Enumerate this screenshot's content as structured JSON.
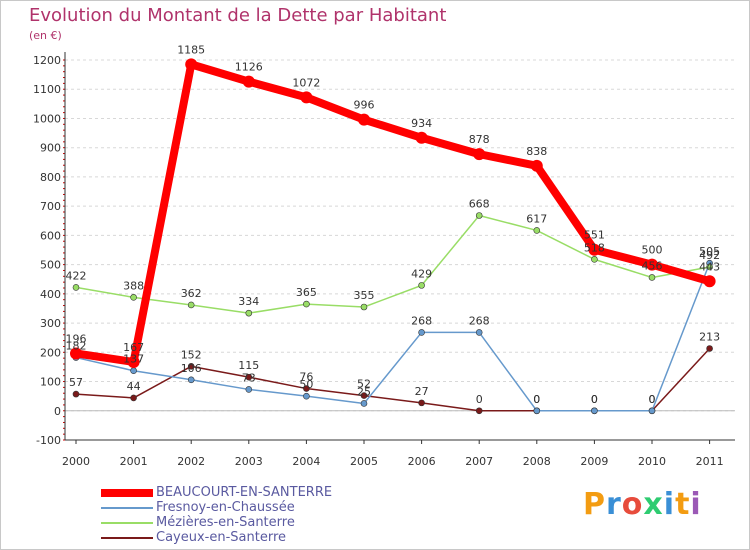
{
  "header": {
    "title": "Evolution du Montant de la Dette par Habitant",
    "unit": "(en €)"
  },
  "logo": {
    "text": "Proxiti"
  },
  "chart_data": {
    "type": "line",
    "title": "Evolution du Montant de la Dette par Habitant",
    "ylabel": "(en €)",
    "xlabel": "",
    "ylim": [
      -100,
      1200
    ],
    "yticks": [
      -100,
      0,
      100,
      200,
      300,
      400,
      500,
      600,
      700,
      800,
      900,
      1000,
      1100,
      1200
    ],
    "grid": "horizontal dashed",
    "legend_position": "bottom-left",
    "categories": [
      "2000",
      "2001",
      "2002",
      "2003",
      "2004",
      "2005",
      "2006",
      "2007",
      "2008",
      "2009",
      "2010",
      "2011"
    ],
    "series": [
      {
        "name": "BEAUCOURT-EN-SANTERRE",
        "color": "#ff0000",
        "values": [
          196,
          167,
          1185,
          1126,
          1072,
          996,
          934,
          878,
          838,
          551,
          500,
          443
        ],
        "labels": [
          "196",
          "167",
          "1185",
          "1126",
          "1072",
          "996",
          "934",
          "878",
          "838",
          "551",
          "500",
          "443"
        ]
      },
      {
        "name": "Fresnoy-en-Chaussée",
        "color": "#6699cc",
        "values": [
          182,
          137,
          106,
          73,
          50,
          25,
          268,
          268,
          0,
          0,
          0,
          505
        ],
        "labels": [
          "182",
          "137",
          "106",
          "73",
          "50",
          "25",
          "268",
          "268",
          "0",
          "0",
          "0",
          "505"
        ]
      },
      {
        "name": "Mézières-en-Santerre",
        "color": "#99dd66",
        "values": [
          422,
          388,
          362,
          334,
          365,
          355,
          429,
          668,
          617,
          518,
          456,
          492
        ],
        "labels": [
          "422",
          "388",
          "362",
          "334",
          "365",
          "355",
          "429",
          "668",
          "617",
          "518",
          "456",
          "492"
        ]
      },
      {
        "name": "Cayeux-en-Santerre",
        "color": "#7a1a1a",
        "values": [
          57,
          44,
          152,
          115,
          76,
          52,
          27,
          0,
          0,
          0,
          0,
          213
        ],
        "labels": [
          "57",
          "44",
          "152",
          "115",
          "76",
          "52",
          "27",
          "0",
          "0",
          "0",
          "0",
          "213"
        ]
      }
    ]
  }
}
